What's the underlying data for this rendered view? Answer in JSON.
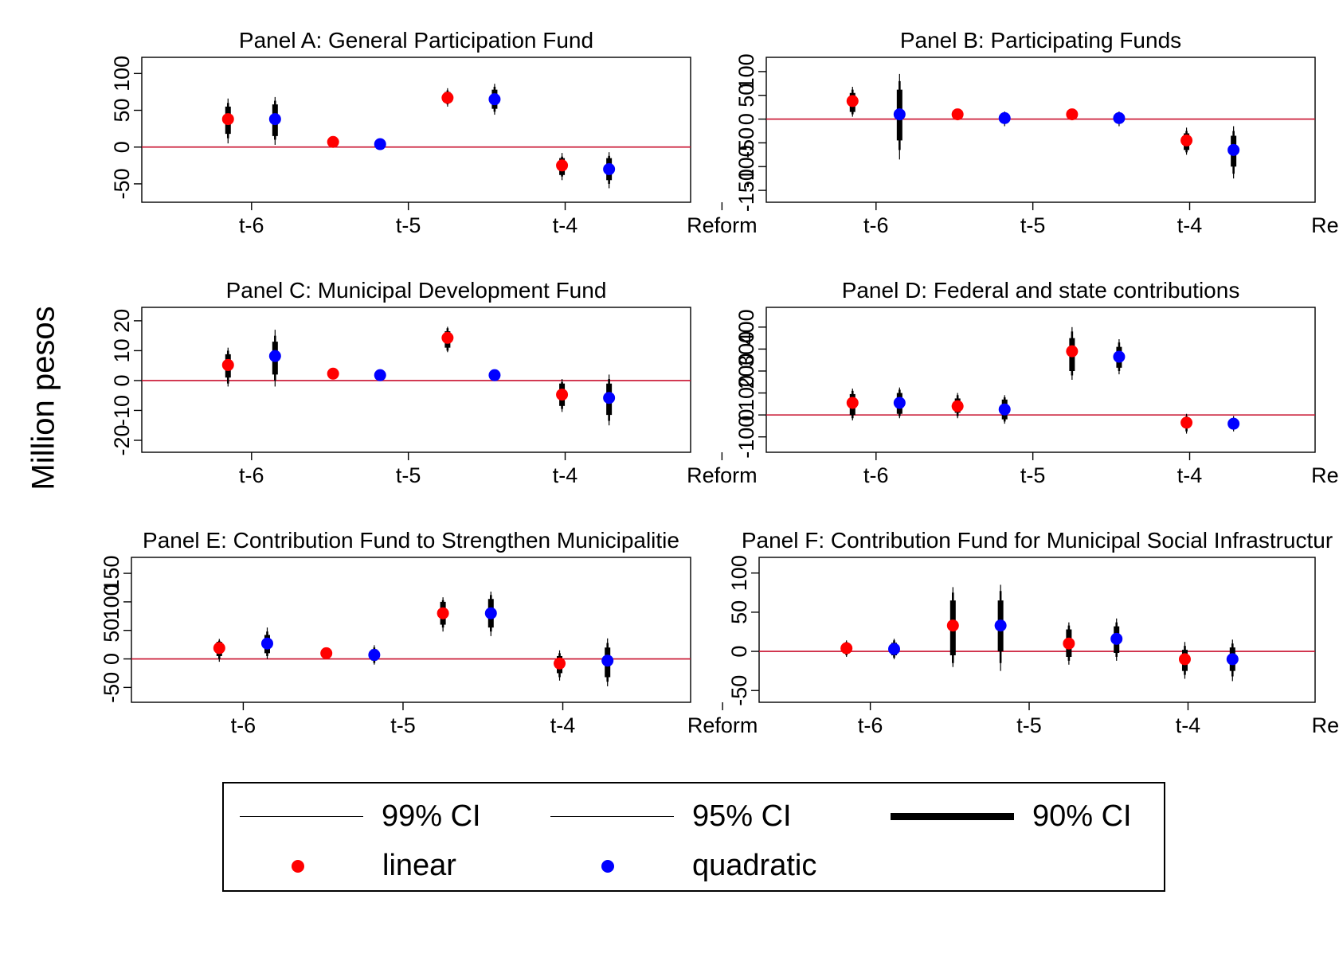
{
  "figure": {
    "ylabel": "Million pesos",
    "legend": {
      "ci99": "99% CI",
      "ci95": "95% CI",
      "ci90": "90% CI",
      "linear": "linear",
      "quadratic": "quadratic"
    },
    "colors": {
      "linear": "#ff0000",
      "quadratic": "#0000ff",
      "zero_line": "#c8102e",
      "ci": "#000000"
    }
  },
  "chart_data": [
    {
      "type": "scatter",
      "title": "Panel A: General Participation Fund",
      "categories": [
        "t-6",
        "t-5",
        "t-4",
        "Reform"
      ],
      "yticks": [
        "-50",
        "0",
        "50",
        "100"
      ],
      "ytick_values": [
        -50,
        0,
        50,
        100
      ],
      "ylim": [
        -75,
        122
      ],
      "series": [
        {
          "name": "linear",
          "x": [
            0.55,
            1.22,
            1.95,
            2.68
          ],
          "y": [
            38,
            7,
            67,
            -25
          ],
          "ci90": [
            [
              18,
              55
            ],
            null,
            [
              60,
              75
            ],
            [
              -38,
              -15
            ]
          ],
          "ci95": [
            [
              12,
              60
            ],
            null,
            [
              58,
              77
            ],
            [
              -40,
              -13
            ]
          ],
          "ci99": [
            [
              5,
              66
            ],
            null,
            [
              55,
              80
            ],
            [
              -45,
              -8
            ]
          ]
        },
        {
          "name": "quadratic",
          "x": [
            0.85,
            1.52,
            2.25,
            2.98
          ],
          "y": [
            38,
            4,
            65,
            -30
          ],
          "ci90": [
            [
              15,
              58
            ],
            null,
            [
              52,
              78
            ],
            [
              -45,
              -15
            ]
          ],
          "ci95": [
            [
              10,
              63
            ],
            null,
            [
              48,
              82
            ],
            [
              -50,
              -12
            ]
          ],
          "ci99": [
            [
              3,
              68
            ],
            null,
            [
              44,
              86
            ],
            [
              -56,
              -7
            ]
          ]
        }
      ]
    },
    {
      "type": "scatter",
      "title": "Panel B: Participating Funds",
      "categories": [
        "t-6",
        "t-5",
        "t-4",
        "Reform"
      ],
      "yticks": [
        "-150",
        "-100",
        "-50",
        "0",
        "50",
        "100"
      ],
      "ytick_values": [
        -150,
        -100,
        -50,
        0,
        50,
        100
      ],
      "ylim": [
        -175,
        130
      ],
      "series": [
        {
          "name": "linear",
          "x": [
            0.55,
            1.22,
            1.95,
            2.68
          ],
          "y": [
            38,
            10,
            10,
            -45
          ],
          "ci90": [
            [
              15,
              55
            ],
            null,
            null,
            [
              -65,
              -30
            ]
          ],
          "ci95": [
            [
              10,
              62
            ],
            null,
            null,
            [
              -70,
              -25
            ]
          ],
          "ci99": [
            [
              5,
              68
            ],
            null,
            null,
            [
              -75,
              -18
            ]
          ]
        },
        {
          "name": "quadratic",
          "x": [
            0.85,
            1.52,
            2.25,
            2.98
          ],
          "y": [
            10,
            2,
            2,
            -65
          ],
          "ci90": [
            [
              -45,
              62
            ],
            [
              -5,
              8
            ],
            [
              -5,
              8
            ],
            [
              -100,
              -35
            ]
          ],
          "ci95": [
            [
              -65,
              80
            ],
            [
              -10,
              12
            ],
            [
              -10,
              12
            ],
            [
              -115,
              -25
            ]
          ],
          "ci99": [
            [
              -85,
              95
            ],
            [
              -15,
              16
            ],
            [
              -15,
              16
            ],
            [
              -125,
              -15
            ]
          ]
        }
      ]
    },
    {
      "type": "scatter",
      "title": "Panel C: Municipal Development Fund",
      "categories": [
        "t-6",
        "t-5",
        "t-4",
        "Reform"
      ],
      "yticks": [
        "-20",
        "-10",
        "0",
        "10",
        "20"
      ],
      "ytick_values": [
        -20,
        -10,
        0,
        10,
        20
      ],
      "ylim": [
        -24,
        24.5
      ],
      "series": [
        {
          "name": "linear",
          "x": [
            0.55,
            1.22,
            1.95,
            2.68
          ],
          "y": [
            5.2,
            2.3,
            14.3,
            -4.7
          ],
          "ci90": [
            [
              1,
              8.8
            ],
            null,
            [
              11,
              16.5
            ],
            [
              -8.5,
              -1
            ]
          ],
          "ci95": [
            [
              -1,
              10
            ],
            null,
            [
              10,
              17.5
            ],
            [
              -9.5,
              -0.5
            ]
          ],
          "ci99": [
            [
              -2,
              11
            ],
            null,
            [
              9.5,
              18
            ],
            [
              -10.5,
              0.5
            ]
          ]
        },
        {
          "name": "quadratic",
          "x": [
            0.85,
            1.52,
            2.25,
            2.98
          ],
          "y": [
            8.2,
            1.8,
            1.8,
            -5.8
          ],
          "ci90": [
            [
              2,
              13
            ],
            null,
            null,
            [
              -11.5,
              -1
            ]
          ],
          "ci95": [
            [
              0,
              15
            ],
            null,
            null,
            [
              -13.5,
              0.5
            ]
          ],
          "ci99": [
            [
              -2,
              17
            ],
            null,
            null,
            [
              -15,
              2
            ]
          ]
        }
      ]
    },
    {
      "type": "scatter",
      "title": "Panel D: Federal and state contributions",
      "categories": [
        "t-6",
        "t-5",
        "t-4",
        "Reform"
      ],
      "yticks": [
        "-100",
        "0",
        "100",
        "200",
        "300",
        "400"
      ],
      "ytick_values": [
        -100,
        0,
        100,
        200,
        300,
        400
      ],
      "ylim": [
        -170,
        490
      ],
      "series": [
        {
          "name": "linear",
          "x": [
            0.55,
            1.22,
            1.95,
            2.68
          ],
          "y": [
            55,
            40,
            290,
            -35
          ],
          "ci90": [
            [
              0,
              95
            ],
            [
              10,
              75
            ],
            [
              200,
              350
            ],
            [
              -60,
              -15
            ]
          ],
          "ci95": [
            [
              -15,
              110
            ],
            [
              -5,
              90
            ],
            [
              180,
              380
            ],
            [
              -75,
              -5
            ]
          ],
          "ci99": [
            [
              -25,
              120
            ],
            [
              -15,
              100
            ],
            [
              160,
              400
            ],
            [
              -85,
              5
            ]
          ]
        },
        {
          "name": "quadratic",
          "x": [
            0.85,
            1.52,
            2.25,
            2.98
          ],
          "y": [
            55,
            25,
            265,
            -40
          ],
          "ci90": [
            [
              5,
              100
            ],
            [
              -20,
              70
            ],
            [
              215,
              310
            ],
            [
              -55,
              -20
            ]
          ],
          "ci95": [
            [
              -5,
              115
            ],
            [
              -30,
              80
            ],
            [
              200,
              330
            ],
            [
              -65,
              -15
            ]
          ],
          "ci99": [
            [
              -15,
              125
            ],
            [
              -40,
              90
            ],
            [
              185,
              345
            ],
            [
              -75,
              -5
            ]
          ]
        }
      ]
    },
    {
      "type": "scatter",
      "title": "Panel E: Contribution Fund to Strengthen Municipalitie",
      "categories": [
        "t-6",
        "t-5",
        "t-4",
        "Reform"
      ],
      "yticks": [
        "-50",
        "0",
        "50",
        "100",
        "150"
      ],
      "ytick_values": [
        -50,
        0,
        50,
        100,
        150
      ],
      "ylim": [
        -76,
        178
      ],
      "series": [
        {
          "name": "linear",
          "x": [
            0.55,
            1.22,
            1.95,
            2.68
          ],
          "y": [
            19,
            10,
            80,
            -8
          ],
          "ci90": [
            [
              5,
              30
            ],
            null,
            [
              60,
              100
            ],
            [
              -25,
              5
            ]
          ],
          "ci95": [
            [
              0,
              32
            ],
            null,
            [
              55,
              103
            ],
            [
              -32,
              10
            ]
          ],
          "ci99": [
            [
              -5,
              35
            ],
            null,
            [
              48,
              108
            ],
            [
              -38,
              15
            ]
          ]
        },
        {
          "name": "quadratic",
          "x": [
            0.85,
            1.52,
            2.25,
            2.98
          ],
          "y": [
            27,
            7,
            80,
            -3
          ],
          "ci90": [
            [
              10,
              42
            ],
            [
              -3,
              17
            ],
            [
              55,
              105
            ],
            [
              -32,
              20
            ]
          ],
          "ci95": [
            [
              5,
              48
            ],
            [
              -7,
              20
            ],
            [
              48,
              112
            ],
            [
              -40,
              28
            ]
          ],
          "ci99": [
            [
              0,
              55
            ],
            [
              -10,
              24
            ],
            [
              40,
              118
            ],
            [
              -48,
              36
            ]
          ]
        }
      ]
    },
    {
      "type": "scatter",
      "title": "Panel F: Contribution Fund for Municipal Social Infrastructur",
      "categories": [
        "t-6",
        "t-5",
        "t-4",
        "Reform"
      ],
      "yticks": [
        "-50",
        "0",
        "50",
        "100"
      ],
      "ytick_values": [
        -50,
        0,
        50,
        100
      ],
      "ylim": [
        -65,
        120
      ],
      "series": [
        {
          "name": "linear",
          "x": [
            0.55,
            1.22,
            1.95,
            2.68
          ],
          "y": [
            4,
            33,
            10,
            -10
          ],
          "ci90": [
            [
              -3,
              10
            ],
            [
              -5,
              65
            ],
            [
              -7,
              28
            ],
            [
              -25,
              2
            ]
          ],
          "ci95": [
            [
              -5,
              12
            ],
            [
              -15,
              75
            ],
            [
              -12,
              33
            ],
            [
              -30,
              7
            ]
          ],
          "ci99": [
            [
              -7,
              14
            ],
            [
              -20,
              82
            ],
            [
              -17,
              37
            ],
            [
              -35,
              12
            ]
          ]
        },
        {
          "name": "quadratic",
          "x": [
            0.85,
            1.52,
            2.25,
            2.98
          ],
          "y": [
            3,
            33,
            16,
            -10
          ],
          "ci90": [
            [
              -5,
              11
            ],
            [
              0,
              65
            ],
            [
              -2,
              32
            ],
            [
              -25,
              5
            ]
          ],
          "ci95": [
            [
              -8,
              14
            ],
            [
              -15,
              77
            ],
            [
              -7,
              37
            ],
            [
              -32,
              10
            ]
          ],
          "ci99": [
            [
              -10,
              16
            ],
            [
              -25,
              85
            ],
            [
              -12,
              42
            ],
            [
              -38,
              15
            ]
          ]
        }
      ]
    }
  ]
}
